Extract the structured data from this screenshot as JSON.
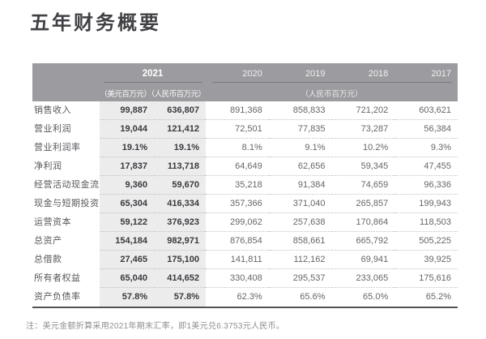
{
  "page": {
    "title": "五年财务概要",
    "note": "注：美元金额折算采用2021年期末汇率，即1美元兑6.3753元人民币。"
  },
  "colors": {
    "header_bg": "#9c9ca0",
    "header_text": "#ffffff",
    "highlight_column_bg": "#ececed",
    "bottom_rule": "#515155",
    "value_text": "#66666a",
    "bold_value_text": "#3a3a3e"
  },
  "table": {
    "header": {
      "year_2021": "2021",
      "units_2021": "（美元百万元）（人民币百万元）",
      "years": [
        "2020",
        "2019",
        "2018",
        "2017"
      ],
      "units_rest": "（人民币百万元）"
    },
    "rows": [
      {
        "label": "销售收入",
        "usd": "99,887",
        "rmb": "636,807",
        "values": [
          "891,368",
          "858,833",
          "721,202",
          "603,621"
        ]
      },
      {
        "label": "营业利润",
        "usd": "19,044",
        "rmb": "121,412",
        "values": [
          "72,501",
          "77,835",
          "73,287",
          "56,384"
        ]
      },
      {
        "label": "营业利润率",
        "usd": "19.1%",
        "rmb": "19.1%",
        "values": [
          "8.1%",
          "9.1%",
          "10.2%",
          "9.3%"
        ]
      },
      {
        "label": "净利润",
        "usd": "17,837",
        "rmb": "113,718",
        "values": [
          "64,649",
          "62,656",
          "59,345",
          "47,455"
        ]
      },
      {
        "label": "经营活动现金流",
        "usd": "9,360",
        "rmb": "59,670",
        "values": [
          "35,218",
          "91,384",
          "74,659",
          "96,336"
        ]
      },
      {
        "label": "现金与短期投资",
        "usd": "65,304",
        "rmb": "416,334",
        "values": [
          "357,366",
          "371,040",
          "265,857",
          "199,943"
        ]
      },
      {
        "label": "运营资本",
        "usd": "59,122",
        "rmb": "376,923",
        "values": [
          "299,062",
          "257,638",
          "170,864",
          "118,503"
        ]
      },
      {
        "label": "总资产",
        "usd": "154,184",
        "rmb": "982,971",
        "values": [
          "876,854",
          "858,661",
          "665,792",
          "505,225"
        ]
      },
      {
        "label": "总借款",
        "usd": "27,465",
        "rmb": "175,100",
        "values": [
          "141,811",
          "112,162",
          "69,941",
          "39,925"
        ]
      },
      {
        "label": "所有者权益",
        "usd": "65,040",
        "rmb": "414,652",
        "values": [
          "330,408",
          "295,537",
          "233,065",
          "175,616"
        ]
      },
      {
        "label": "资产负债率",
        "usd": "57.8%",
        "rmb": "57.8%",
        "values": [
          "62.3%",
          "65.6%",
          "65.0%",
          "65.2%"
        ]
      }
    ]
  }
}
